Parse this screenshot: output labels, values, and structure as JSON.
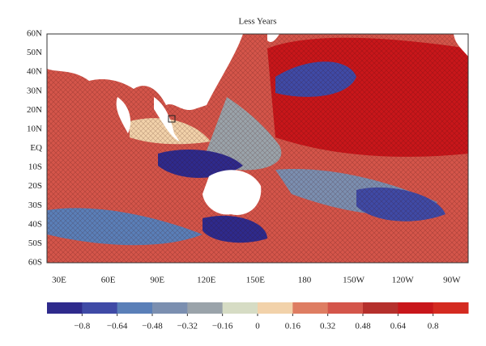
{
  "title": "Less Years",
  "lat_labels": [
    "60N",
    "50N",
    "40N",
    "30N",
    "20N",
    "10N",
    "EQ",
    "10S",
    "20S",
    "30S",
    "40S",
    "50S",
    "60S"
  ],
  "lon_labels": [
    "30E",
    "60E",
    "90E",
    "120E",
    "150E",
    "180",
    "150W",
    "120W",
    "90W"
  ],
  "colorbar": {
    "range": [
      -0.96,
      0.96
    ],
    "colors": [
      "#2e2a8c",
      "#3f4aa6",
      "#5a7fb8",
      "#7b8fb0",
      "#9aa3aa",
      "#d6dcc4",
      "#f2d2aa",
      "#de7d62",
      "#d4554a",
      "#b5302c",
      "#c8161a",
      "#d42a20"
    ],
    "ticks": [
      {
        "value": -0.8,
        "label": "−0.8"
      },
      {
        "value": -0.64,
        "label": "−0.64"
      },
      {
        "value": -0.48,
        "label": "−0.48"
      },
      {
        "value": -0.32,
        "label": "−0.32"
      },
      {
        "value": -0.16,
        "label": "−0.16"
      },
      0,
      0.16,
      0.32,
      0.48,
      0.64,
      0.8
    ]
  }
}
